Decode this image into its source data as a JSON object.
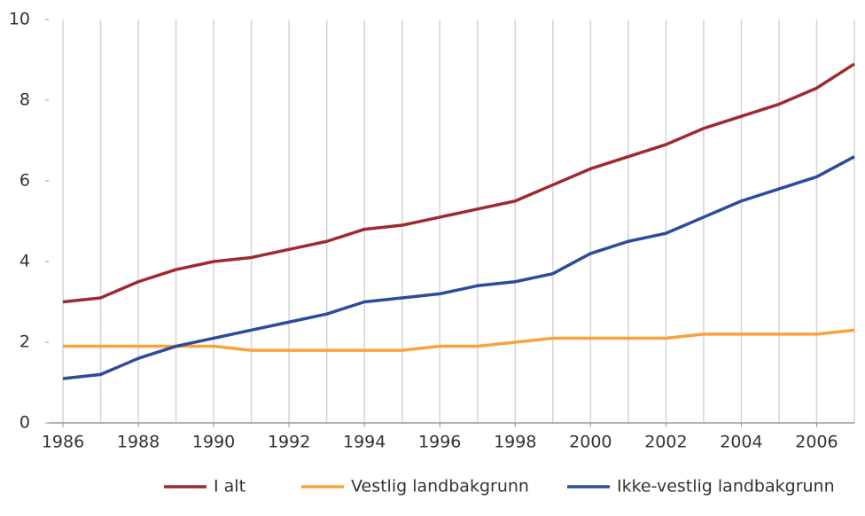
{
  "chart_data": {
    "type": "line",
    "x": [
      1986,
      1987,
      1988,
      1989,
      1990,
      1991,
      1992,
      1993,
      1994,
      1995,
      1996,
      1997,
      1998,
      1999,
      2000,
      2001,
      2002,
      2003,
      2004,
      2005,
      2006,
      2007
    ],
    "series": [
      {
        "name": "I alt",
        "color": "#9e2a2f",
        "values": [
          3.0,
          3.1,
          3.5,
          3.8,
          4.0,
          4.1,
          4.3,
          4.5,
          4.8,
          4.9,
          5.1,
          5.3,
          5.5,
          5.9,
          6.3,
          6.6,
          6.9,
          7.3,
          7.6,
          7.9,
          8.3,
          8.9
        ]
      },
      {
        "name": "Vestlig landbakgrunn",
        "color": "#f7a33c",
        "values": [
          1.9,
          1.9,
          1.9,
          1.9,
          1.9,
          1.8,
          1.8,
          1.8,
          1.8,
          1.8,
          1.9,
          1.9,
          2.0,
          2.1,
          2.1,
          2.1,
          2.1,
          2.2,
          2.2,
          2.2,
          2.2,
          2.3
        ]
      },
      {
        "name": "Ikke-vestlig landbakgrunn",
        "color": "#2e4b9b",
        "values": [
          1.1,
          1.2,
          1.6,
          1.9,
          2.1,
          2.3,
          2.5,
          2.7,
          3.0,
          3.1,
          3.2,
          3.4,
          3.5,
          3.7,
          4.2,
          4.5,
          4.7,
          5.1,
          5.5,
          5.8,
          6.1,
          6.6
        ]
      }
    ],
    "xlim": [
      1986,
      2007
    ],
    "xticks": [
      1986,
      1988,
      1990,
      1992,
      1994,
      1996,
      1998,
      2000,
      2002,
      2004,
      2006
    ],
    "ylim": [
      0,
      10
    ],
    "yticks": [
      0,
      2,
      4,
      6,
      8,
      10
    ],
    "grid": true,
    "legend": "bottom"
  }
}
